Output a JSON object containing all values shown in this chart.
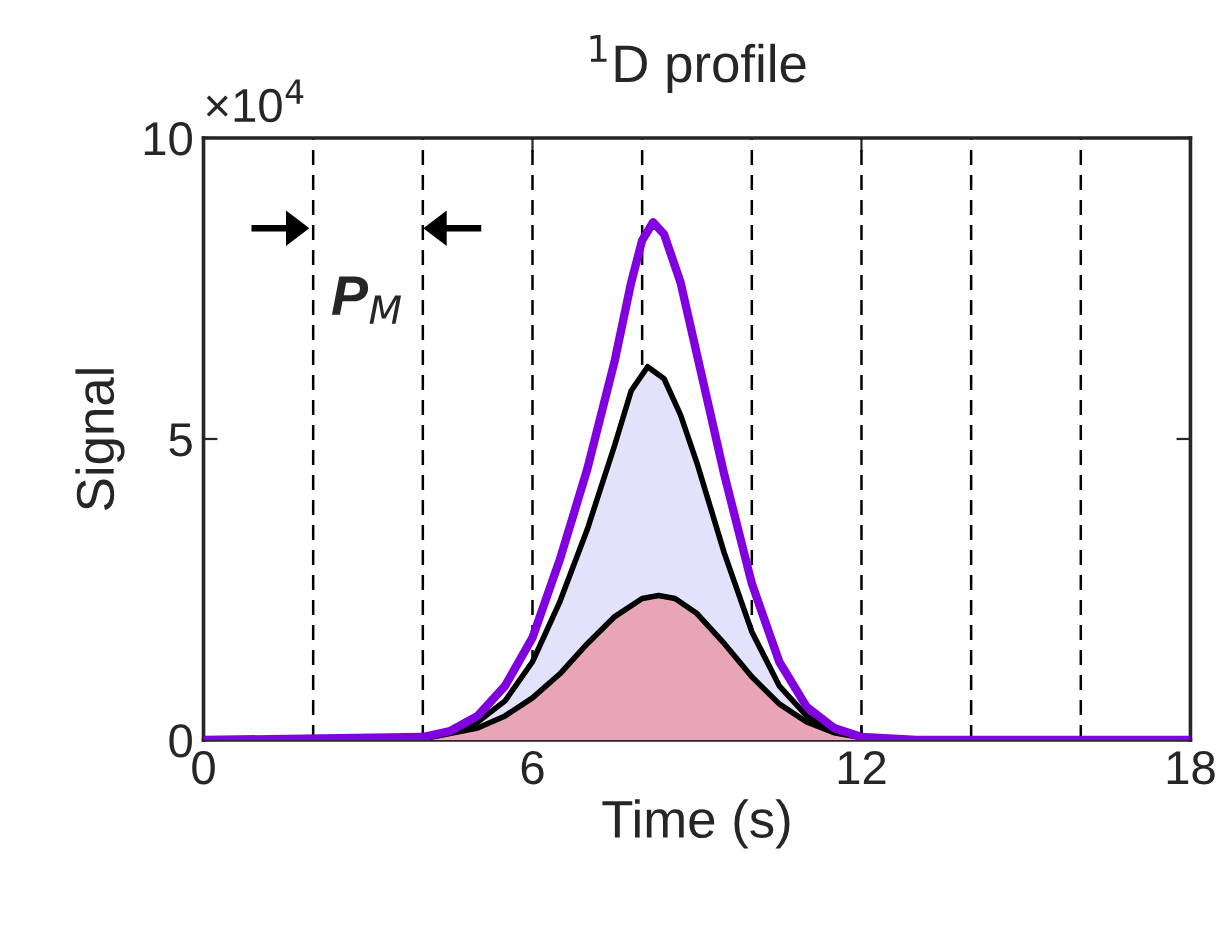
{
  "chart_data": {
    "type": "line",
    "title": "$^{1}$D profile",
    "xlabel": "Time (s)",
    "ylabel": "Signal",
    "xlim": [
      0,
      18
    ],
    "xticks": [
      0,
      6,
      12,
      18
    ],
    "ylim": [
      0,
      10
    ],
    "yticks": [
      0,
      5,
      10
    ],
    "grid": false,
    "legend": false,
    "annotations": [
      "×10$^{4}$",
      "P$_{M}$"
    ],
    "ref_lines": [
      {
        "axis": "x",
        "value": 2,
        "color": "#000000",
        "line_style": "dashed"
      },
      {
        "axis": "x",
        "value": 4,
        "color": "#000000",
        "line_style": "dashed"
      },
      {
        "axis": "x",
        "value": 6,
        "color": "#000000",
        "line_style": "dashed"
      },
      {
        "axis": "x",
        "value": 8,
        "color": "#000000",
        "line_style": "dashed"
      },
      {
        "axis": "x",
        "value": 10,
        "color": "#000000",
        "line_style": "dashed"
      },
      {
        "axis": "x",
        "value": 12,
        "color": "#000000",
        "line_style": "dashed"
      },
      {
        "axis": "x",
        "value": 14,
        "color": "#000000",
        "line_style": "dashed"
      },
      {
        "axis": "x",
        "value": 16,
        "color": "#000000",
        "line_style": "dashed"
      }
    ],
    "series": [
      {
        "type": "area",
        "color": "#e2e2fb",
        "x": [
          0,
          4,
          4.5,
          5,
          5.5,
          6,
          6.5,
          7,
          7.5,
          7.8,
          8.1,
          8.4,
          8.7,
          9,
          9.5,
          10,
          10.5,
          11,
          11.5,
          12,
          13,
          18
        ],
        "values": [
          0,
          0.03,
          0.1,
          0.3,
          0.65,
          1.3,
          2.3,
          3.5,
          4.9,
          5.8,
          6.2,
          6.0,
          5.4,
          4.6,
          3.1,
          1.8,
          0.9,
          0.4,
          0.15,
          0.04,
          0,
          0
        ]
      },
      {
        "type": "area",
        "color": "#e8a5b5",
        "x": [
          0,
          4,
          5,
          5.5,
          6,
          6.5,
          7,
          7.5,
          8,
          8.3,
          8.6,
          9,
          9.5,
          10,
          10.5,
          11,
          11.5,
          12,
          13,
          18
        ],
        "values": [
          0,
          0.02,
          0.2,
          0.4,
          0.7,
          1.1,
          1.6,
          2.05,
          2.35,
          2.4,
          2.35,
          2.1,
          1.6,
          1.05,
          0.6,
          0.3,
          0.12,
          0.04,
          0,
          0
        ]
      },
      {
        "color": "#8000e0",
        "x": [
          0,
          4,
          4.5,
          5,
          5.5,
          6,
          6.5,
          7,
          7.5,
          7.8,
          8,
          8.2,
          8.4,
          8.7,
          9,
          9.5,
          10,
          10.5,
          11,
          11.5,
          12,
          13,
          18
        ],
        "values": [
          0,
          0.05,
          0.15,
          0.4,
          0.9,
          1.7,
          3.0,
          4.5,
          6.3,
          7.6,
          8.3,
          8.6,
          8.4,
          7.6,
          6.4,
          4.4,
          2.6,
          1.3,
          0.55,
          0.2,
          0.05,
          0,
          0
        ]
      }
    ]
  }
}
